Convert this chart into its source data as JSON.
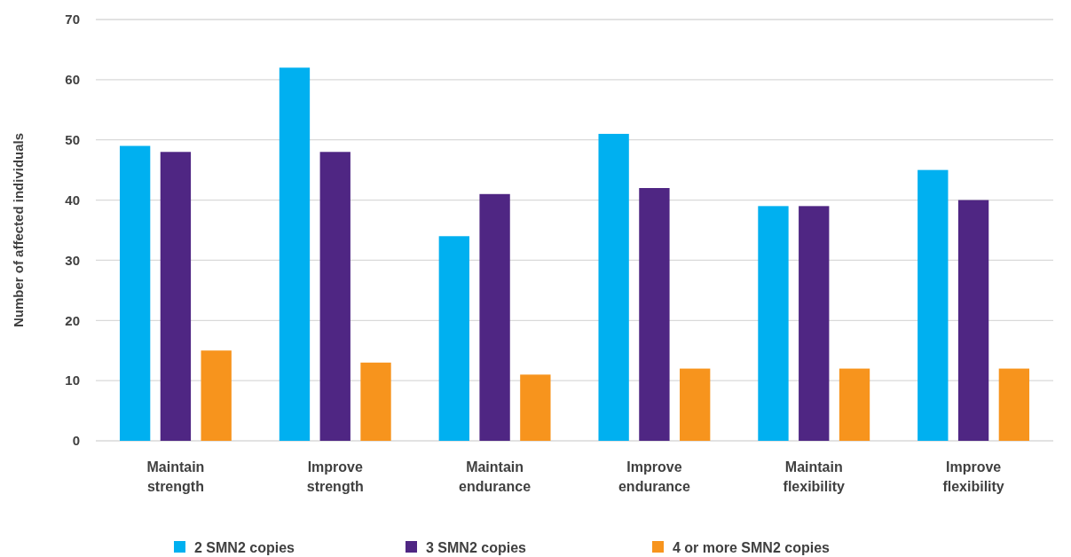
{
  "chart_data": {
    "type": "bar",
    "ylabel": "Number of affected individuals",
    "categories": [
      "Maintain strength",
      "Improve strength",
      "Maintain endurance",
      "Improve endurance",
      "Maintain flexibility",
      "Improve flexibility"
    ],
    "series": [
      {
        "name": "2 SMN2 copies",
        "color": "#00b0f0",
        "values": [
          49,
          62,
          34,
          51,
          39,
          45
        ]
      },
      {
        "name": "3 SMN2 copies",
        "color": "#4f2683",
        "values": [
          48,
          48,
          41,
          42,
          39,
          40
        ]
      },
      {
        "name": "4 or more SMN2 copies",
        "color": "#f7941d",
        "values": [
          15,
          13,
          11,
          12,
          12,
          12
        ]
      }
    ],
    "ylim": [
      0,
      70
    ],
    "yticks": [
      0,
      10,
      20,
      30,
      40,
      50,
      60,
      70
    ],
    "grid": "y",
    "legend": "bottom"
  }
}
